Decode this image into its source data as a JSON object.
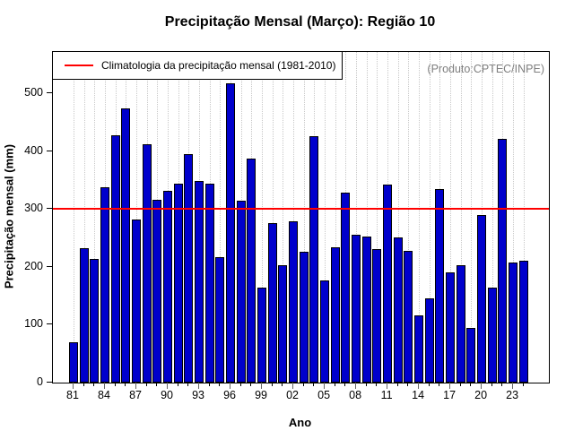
{
  "title": "Precipitação Mensal (Março): Região 10",
  "annotation": "(Produto:CPTEC/INPE)",
  "legend": {
    "label": "Climatologia da precipitação mensal (1981-2010)"
  },
  "colors": {
    "bar_fill": "#0000CC",
    "bar_border": "#000000",
    "climatology_line": "#FF0000",
    "grid": "#C8C8C8",
    "annotation_text": "#7F7F7F"
  },
  "chart_data": {
    "type": "bar",
    "title": "Precipitação Mensal (Março): Região 10",
    "xlabel": "Ano",
    "ylabel": "Precipitação mensal (mm)",
    "ylim": [
      0,
      571
    ],
    "yticks": [
      0,
      100,
      200,
      300,
      400,
      500
    ],
    "xtick_labels": [
      "81",
      "84",
      "87",
      "90",
      "93",
      "96",
      "99",
      "02",
      "05",
      "08",
      "11",
      "14",
      "17",
      "20",
      "23"
    ],
    "grid": "vertical-dotted",
    "legend_position": "top-left",
    "years": [
      1981,
      1982,
      1983,
      1984,
      1985,
      1986,
      1987,
      1988,
      1989,
      1990,
      1991,
      1992,
      1993,
      1994,
      1995,
      1996,
      1997,
      1998,
      1999,
      2000,
      2001,
      2002,
      2003,
      2004,
      2005,
      2006,
      2007,
      2008,
      2009,
      2010,
      2011,
      2012,
      2013,
      2014,
      2015,
      2016,
      2017,
      2018,
      2019,
      2020,
      2021,
      2022,
      2023,
      2024
    ],
    "values": [
      70,
      232,
      213,
      337,
      427,
      474,
      281,
      412,
      316,
      331,
      344,
      395,
      348,
      344,
      216,
      517,
      314,
      387,
      164,
      275,
      203,
      278,
      226,
      426,
      177,
      234,
      328,
      255,
      252,
      231,
      342,
      251,
      227,
      116,
      145,
      334,
      191,
      202,
      95,
      290,
      164,
      421,
      207,
      211
    ],
    "climatology_value": 300
  }
}
